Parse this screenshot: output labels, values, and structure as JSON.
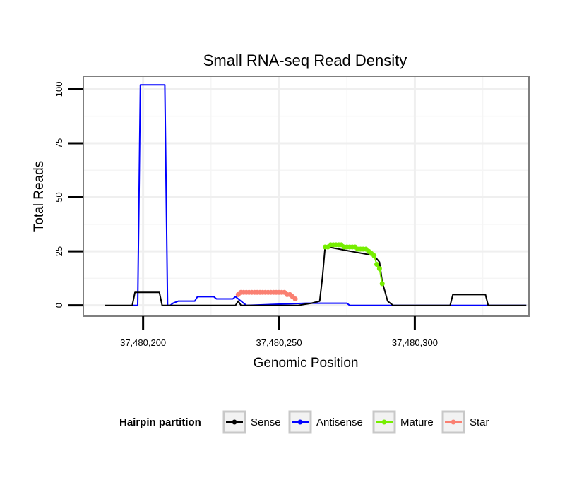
{
  "chart_data": {
    "type": "line",
    "title": "Small RNA-seq Read Density",
    "xlabel": "Genomic Position",
    "ylabel": "Total Reads",
    "xlim": [
      37480178,
      37480342
    ],
    "ylim": [
      -5,
      106
    ],
    "xticks": [
      37480200,
      37480250,
      37480300
    ],
    "xtick_labels": [
      "37,480,200",
      "37,480,250",
      "37,480,300"
    ],
    "yticks": [
      0,
      25,
      50,
      75,
      100
    ],
    "ytick_labels": [
      "0",
      "25",
      "50",
      "75",
      "100"
    ],
    "grid": true,
    "legend": {
      "title": "Hairpin partition",
      "position": "bottom",
      "entries": [
        "Sense",
        "Antisense",
        "Mature",
        "Star"
      ]
    },
    "series": [
      {
        "name": "Sense",
        "color": "#000000",
        "points": false,
        "x": [
          37480186,
          37480196,
          37480197,
          37480203,
          37480206,
          37480207,
          37480220,
          37480230,
          37480234,
          37480235,
          37480236,
          37480257,
          37480262,
          37480265,
          37480266,
          37480267,
          37480268,
          37480285,
          37480287,
          37480288,
          37480290,
          37480292,
          37480313,
          37480314,
          37480326,
          37480327,
          37480341
        ],
        "y": [
          0,
          0,
          6,
          6,
          6,
          0,
          0,
          0,
          0,
          2,
          0,
          0,
          1,
          2,
          13,
          27,
          27,
          23,
          20,
          11,
          2,
          0,
          0,
          5,
          5,
          0,
          0
        ]
      },
      {
        "name": "Antisense",
        "color": "#0000ff",
        "points": false,
        "x": [
          37480196,
          37480198,
          37480199,
          37480208,
          37480209,
          37480210,
          37480211,
          37480213,
          37480219,
          37480220,
          37480226,
          37480227,
          37480233,
          37480234,
          37480237,
          37480238,
          37480260,
          37480275,
          37480276,
          37480341
        ],
        "y": [
          0,
          0,
          102,
          102,
          0,
          0,
          1,
          2,
          2,
          4,
          4,
          3,
          3,
          4,
          1,
          0,
          1,
          1,
          0,
          0
        ]
      },
      {
        "name": "Mature",
        "color": "#76ee00",
        "points": true,
        "x": [
          37480267,
          37480268,
          37480269,
          37480270,
          37480271,
          37480272,
          37480273,
          37480274,
          37480275,
          37480276,
          37480277,
          37480278,
          37480279,
          37480280,
          37480281,
          37480282,
          37480283,
          37480284,
          37480285,
          37480286,
          37480287,
          37480288
        ],
        "y": [
          27,
          27,
          28,
          28,
          28,
          28,
          28,
          27,
          27,
          27,
          27,
          27,
          26,
          26,
          26,
          26,
          25,
          24,
          23,
          19,
          17,
          10
        ]
      },
      {
        "name": "Star",
        "color": "#fa8072",
        "points": true,
        "x": [
          37480235,
          37480236,
          37480237,
          37480238,
          37480239,
          37480240,
          37480241,
          37480242,
          37480243,
          37480244,
          37480245,
          37480246,
          37480247,
          37480248,
          37480249,
          37480250,
          37480251,
          37480252,
          37480253,
          37480254,
          37480255,
          37480256
        ],
        "y": [
          5,
          6,
          6,
          6,
          6,
          6,
          6,
          6,
          6,
          6,
          6,
          6,
          6,
          6,
          6,
          6,
          6,
          6,
          5,
          5,
          4,
          3
        ]
      }
    ]
  }
}
